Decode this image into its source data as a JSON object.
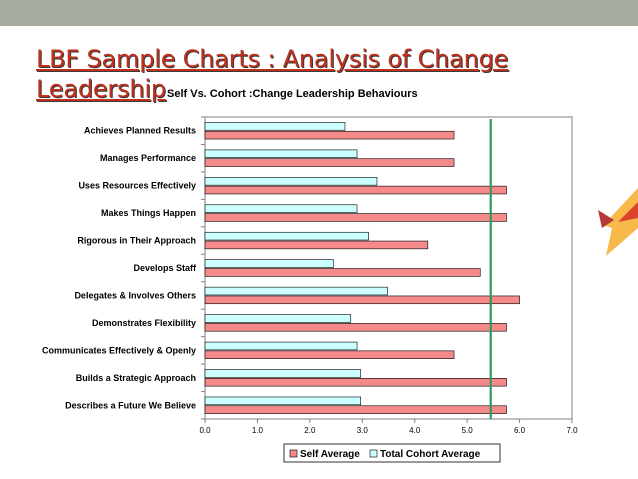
{
  "slide": {
    "title_line1": "LBF Sample Charts : Analysis of Change",
    "title_line2": "Leadership"
  },
  "colors": {
    "topbar": "#a7aca1",
    "title": "#c0301c",
    "self_bar": "#f48a8a",
    "cohort_bar": "#ccffff",
    "reference_line": "#2e9a5b"
  },
  "chart_data": {
    "type": "bar",
    "orientation": "horizontal",
    "title": "Self Vs. Cohort :Change Leadership Behaviours",
    "categories": [
      "Achieves Planned Results",
      "Manages Performance",
      "Uses Resources Effectively",
      "Makes Things Happen",
      "Rigorous in Their Approach",
      "Develops Staff",
      "Delegates & Involves Others",
      "Demonstrates Flexibility",
      "Communicates Effectively & Openly",
      "Builds a Strategic Approach",
      "Describes a Future We Believe"
    ],
    "series": [
      {
        "name": "Self Average",
        "values": [
          4.75,
          4.75,
          5.75,
          5.75,
          4.25,
          5.25,
          6.0,
          5.75,
          4.75,
          5.75,
          5.75
        ]
      },
      {
        "name": "Total Cohort Average",
        "values": [
          2.67,
          2.9,
          3.28,
          2.9,
          3.12,
          2.45,
          3.48,
          2.78,
          2.9,
          2.97,
          2.97
        ]
      }
    ],
    "reference_line": 5.45,
    "xlim": [
      0,
      7
    ],
    "xticks": [
      "0.0",
      "1.0",
      "2.0",
      "3.0",
      "4.0",
      "5.0",
      "6.0",
      "7.0"
    ],
    "grid": false,
    "legend_position": "bottom"
  }
}
